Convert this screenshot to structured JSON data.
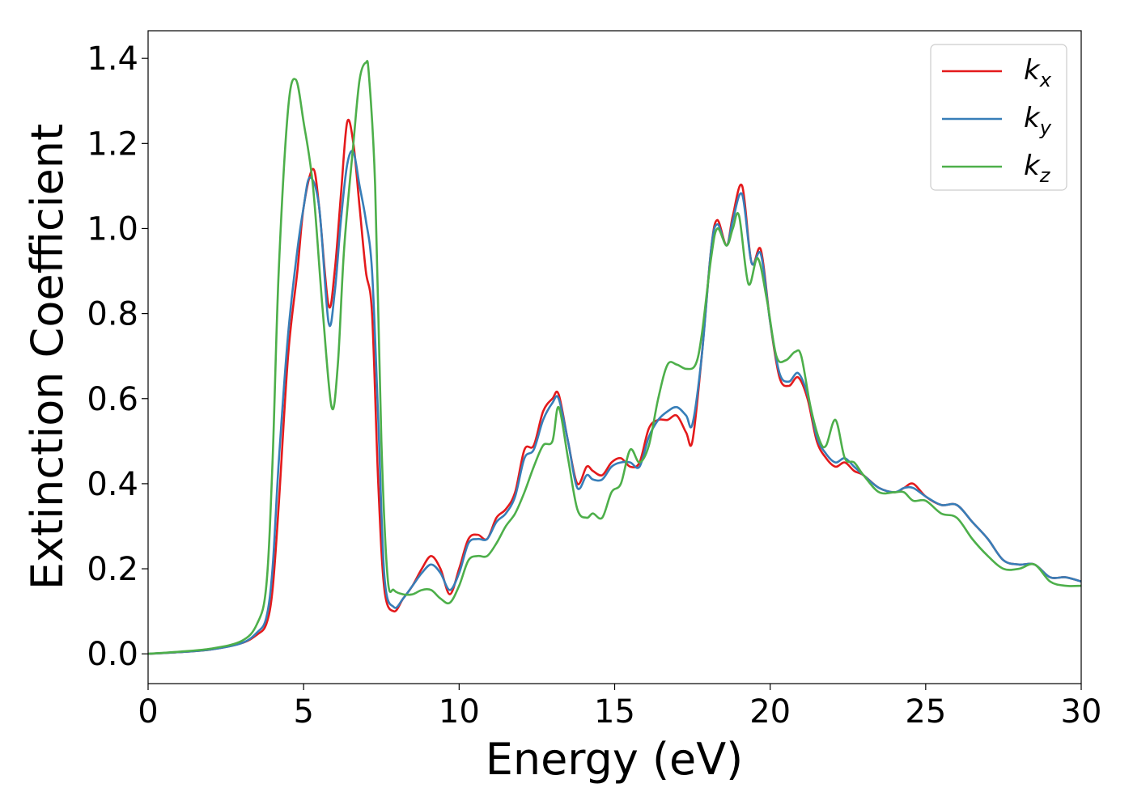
{
  "chart_data": {
    "type": "line",
    "xlabel": "Energy (eV)",
    "ylabel": "Extinction Coefficient",
    "xlim": [
      0,
      30
    ],
    "ylim": [
      -0.07,
      1.465
    ],
    "xticks": [
      0,
      5,
      10,
      15,
      20,
      25,
      30
    ],
    "xtick_labels": [
      "0",
      "5",
      "10",
      "15",
      "20",
      "25",
      "30"
    ],
    "yticks": [
      0.0,
      0.2,
      0.4,
      0.6,
      0.8,
      1.0,
      1.2,
      1.4
    ],
    "ytick_labels": [
      "0.0",
      "0.2",
      "0.4",
      "0.6",
      "0.8",
      "1.0",
      "1.2",
      "1.4"
    ],
    "grid": false,
    "legend_position": "top-right",
    "series": [
      {
        "name": "k_x",
        "label_base": "k",
        "label_sub": "x",
        "color": "#e41a1c",
        "x": [
          0,
          1,
          2,
          3,
          3.5,
          3.8,
          4.0,
          4.2,
          4.5,
          4.8,
          5.0,
          5.3,
          5.5,
          5.8,
          6.0,
          6.2,
          6.4,
          6.6,
          6.8,
          7.0,
          7.2,
          7.4,
          7.6,
          7.9,
          8.2,
          8.5,
          8.8,
          9.1,
          9.4,
          9.7,
          10.0,
          10.3,
          10.6,
          10.9,
          11.2,
          11.5,
          11.8,
          12.1,
          12.4,
          12.7,
          13.0,
          13.2,
          13.5,
          13.8,
          14.1,
          14.3,
          14.6,
          14.9,
          15.2,
          15.5,
          15.8,
          16.1,
          16.4,
          16.7,
          17.0,
          17.3,
          17.5,
          17.8,
          18.1,
          18.3,
          18.6,
          18.8,
          19.1,
          19.4,
          19.7,
          20.0,
          20.3,
          20.6,
          20.9,
          21.2,
          21.5,
          21.8,
          22.1,
          22.4,
          22.7,
          23.0,
          23.5,
          24.0,
          24.3,
          24.6,
          25.0,
          25.5,
          26.0,
          26.5,
          27.0,
          27.5,
          28.0,
          28.5,
          29.0,
          29.5,
          30.0
        ],
        "y": [
          0.0,
          0.004,
          0.01,
          0.025,
          0.045,
          0.07,
          0.15,
          0.35,
          0.7,
          0.9,
          1.05,
          1.14,
          1.05,
          0.82,
          0.9,
          1.08,
          1.25,
          1.2,
          1.05,
          0.9,
          0.8,
          0.4,
          0.15,
          0.1,
          0.13,
          0.16,
          0.2,
          0.23,
          0.2,
          0.14,
          0.2,
          0.27,
          0.28,
          0.27,
          0.32,
          0.34,
          0.38,
          0.48,
          0.49,
          0.57,
          0.6,
          0.61,
          0.5,
          0.4,
          0.44,
          0.43,
          0.42,
          0.45,
          0.46,
          0.44,
          0.45,
          0.53,
          0.55,
          0.55,
          0.56,
          0.52,
          0.5,
          0.7,
          0.95,
          1.02,
          0.96,
          1.03,
          1.1,
          0.92,
          0.95,
          0.78,
          0.65,
          0.63,
          0.65,
          0.6,
          0.5,
          0.46,
          0.44,
          0.45,
          0.43,
          0.42,
          0.39,
          0.38,
          0.39,
          0.4,
          0.37,
          0.35,
          0.35,
          0.31,
          0.27,
          0.22,
          0.21,
          0.21,
          0.18,
          0.18,
          0.17
        ]
      },
      {
        "name": "k_y",
        "label_base": "k",
        "label_sub": "y",
        "color": "#377eb8",
        "x": [
          0,
          1,
          2,
          3,
          3.5,
          3.8,
          4.0,
          4.2,
          4.5,
          4.8,
          5.0,
          5.2,
          5.5,
          5.8,
          6.0,
          6.2,
          6.4,
          6.6,
          6.8,
          7.0,
          7.2,
          7.4,
          7.6,
          7.9,
          8.2,
          8.5,
          8.8,
          9.1,
          9.4,
          9.7,
          10.0,
          10.3,
          10.6,
          10.9,
          11.2,
          11.5,
          11.8,
          12.1,
          12.4,
          12.7,
          13.0,
          13.2,
          13.5,
          13.8,
          14.1,
          14.3,
          14.6,
          14.9,
          15.2,
          15.5,
          15.8,
          16.1,
          16.4,
          16.7,
          17.0,
          17.3,
          17.5,
          17.8,
          18.1,
          18.3,
          18.6,
          18.8,
          19.1,
          19.4,
          19.7,
          20.0,
          20.3,
          20.6,
          20.9,
          21.2,
          21.5,
          21.8,
          22.1,
          22.4,
          22.7,
          23.0,
          23.5,
          24.0,
          24.3,
          24.6,
          25.0,
          25.5,
          26.0,
          26.5,
          27.0,
          27.5,
          28.0,
          28.5,
          29.0,
          29.5,
          30.0
        ],
        "y": [
          0.0,
          0.004,
          0.01,
          0.025,
          0.05,
          0.085,
          0.2,
          0.45,
          0.75,
          0.95,
          1.05,
          1.12,
          1.05,
          0.78,
          0.85,
          1.02,
          1.15,
          1.18,
          1.1,
          1.02,
          0.9,
          0.55,
          0.18,
          0.11,
          0.13,
          0.16,
          0.19,
          0.21,
          0.19,
          0.15,
          0.19,
          0.26,
          0.27,
          0.27,
          0.31,
          0.33,
          0.37,
          0.46,
          0.48,
          0.55,
          0.59,
          0.6,
          0.5,
          0.39,
          0.42,
          0.41,
          0.41,
          0.44,
          0.45,
          0.45,
          0.44,
          0.51,
          0.55,
          0.57,
          0.58,
          0.56,
          0.54,
          0.7,
          0.95,
          1.01,
          0.96,
          1.02,
          1.08,
          0.92,
          0.94,
          0.78,
          0.66,
          0.64,
          0.66,
          0.61,
          0.51,
          0.47,
          0.45,
          0.46,
          0.44,
          0.42,
          0.39,
          0.38,
          0.39,
          0.39,
          0.37,
          0.35,
          0.35,
          0.31,
          0.27,
          0.22,
          0.21,
          0.21,
          0.18,
          0.18,
          0.17
        ]
      },
      {
        "name": "k_z",
        "label_base": "k",
        "label_sub": "z",
        "color": "#4daf4a",
        "x": [
          0,
          1,
          2,
          3,
          3.5,
          3.8,
          4.0,
          4.2,
          4.5,
          4.75,
          5.0,
          5.3,
          5.6,
          5.9,
          6.1,
          6.3,
          6.6,
          6.8,
          7.0,
          7.1,
          7.3,
          7.5,
          7.7,
          7.9,
          8.2,
          8.5,
          8.8,
          9.1,
          9.4,
          9.7,
          10.0,
          10.3,
          10.6,
          10.9,
          11.2,
          11.5,
          11.8,
          12.1,
          12.4,
          12.7,
          13.0,
          13.2,
          13.5,
          13.8,
          14.1,
          14.3,
          14.6,
          14.9,
          15.2,
          15.5,
          15.8,
          16.1,
          16.4,
          16.7,
          17.0,
          17.3,
          17.6,
          17.8,
          18.1,
          18.3,
          18.6,
          18.8,
          19.0,
          19.3,
          19.6,
          19.9,
          20.2,
          20.5,
          20.8,
          21.0,
          21.3,
          21.6,
          21.8,
          22.1,
          22.4,
          22.7,
          23.0,
          23.5,
          24.0,
          24.3,
          24.6,
          25.0,
          25.5,
          26.0,
          26.5,
          27.0,
          27.5,
          28.0,
          28.5,
          29.0,
          29.5,
          30.0
        ],
        "y": [
          0.0,
          0.005,
          0.012,
          0.03,
          0.07,
          0.16,
          0.45,
          0.9,
          1.28,
          1.35,
          1.25,
          1.1,
          0.82,
          0.58,
          0.68,
          0.95,
          1.2,
          1.35,
          1.39,
          1.36,
          1.1,
          0.5,
          0.18,
          0.15,
          0.14,
          0.14,
          0.15,
          0.15,
          0.13,
          0.12,
          0.16,
          0.22,
          0.23,
          0.23,
          0.26,
          0.3,
          0.33,
          0.38,
          0.44,
          0.49,
          0.5,
          0.58,
          0.46,
          0.34,
          0.32,
          0.33,
          0.32,
          0.38,
          0.4,
          0.48,
          0.45,
          0.49,
          0.6,
          0.68,
          0.68,
          0.67,
          0.68,
          0.75,
          0.93,
          1.0,
          0.96,
          1.0,
          1.03,
          0.87,
          0.93,
          0.83,
          0.7,
          0.69,
          0.71,
          0.7,
          0.58,
          0.5,
          0.49,
          0.55,
          0.46,
          0.45,
          0.42,
          0.38,
          0.38,
          0.38,
          0.36,
          0.36,
          0.33,
          0.32,
          0.27,
          0.23,
          0.2,
          0.2,
          0.21,
          0.17,
          0.16,
          0.16
        ]
      }
    ]
  }
}
